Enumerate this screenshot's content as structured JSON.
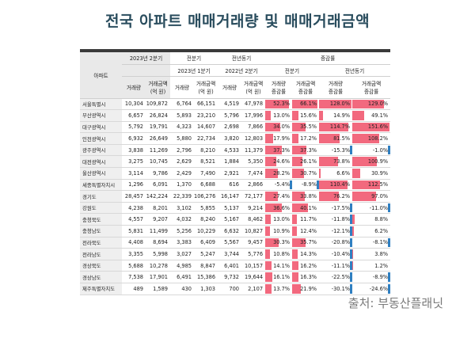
{
  "title": "전국 아파트 매매거래량 및 매매거래금액",
  "header": {
    "region": "아파트",
    "q2023": "2023년 2분기",
    "prev_q": "전분기",
    "prev_y": "전년동기",
    "change": "증감률",
    "q2023_1": "2023년 1분기",
    "q2022_2": "2022년 2분기",
    "change_prev_q": "전분기",
    "change_prev_y": "전년동기",
    "volume": "거래량",
    "amount": "거래금액\n(억 원)",
    "vol_change": "거래량\n증감률",
    "amt_change": "거래금액\n증감률"
  },
  "rows": [
    {
      "name": "서울특별시",
      "v23": "10,304",
      "a23": "109,872",
      "v1": "6,764",
      "a1": "66,151",
      "v22": "4,519",
      "a22": "47,978",
      "c1": "52.3%",
      "c2": "66.1%",
      "c3": "128.0%",
      "c4": "129.0%"
    },
    {
      "name": "부산광역시",
      "v23": "6,657",
      "a23": "26,824",
      "v1": "5,893",
      "a1": "23,210",
      "v22": "5,796",
      "a22": "17,996",
      "c1": "13.0%",
      "c2": "15.6%",
      "c3": "14.9%",
      "c4": "49.1%"
    },
    {
      "name": "대구광역시",
      "v23": "5,792",
      "a23": "19,791",
      "v1": "4,323",
      "a1": "14,607",
      "v22": "2,698",
      "a22": "7,866",
      "c1": "34.0%",
      "c2": "35.5%",
      "c3": "114.7%",
      "c4": "151.6%"
    },
    {
      "name": "인천광역시",
      "v23": "6,932",
      "a23": "26,649",
      "v1": "5,880",
      "a1": "22,734",
      "v22": "3,820",
      "a22": "12,803",
      "c1": "17.9%",
      "c2": "17.2%",
      "c3": "81.5%",
      "c4": "108.2%"
    },
    {
      "name": "광주광역시",
      "v23": "3,838",
      "a23": "11,269",
      "v1": "2,796",
      "a1": "8,210",
      "v22": "4,533",
      "a22": "11,379",
      "c1": "37.3%",
      "c2": "37.3%",
      "c3": "-15.3%",
      "c4": "-1.0%"
    },
    {
      "name": "대전광역시",
      "v23": "3,275",
      "a23": "10,745",
      "v1": "2,629",
      "a1": "8,521",
      "v22": "1,884",
      "a22": "5,350",
      "c1": "24.6%",
      "c2": "26.1%",
      "c3": "73.8%",
      "c4": "100.9%"
    },
    {
      "name": "울산광역시",
      "v23": "3,114",
      "a23": "9,786",
      "v1": "2,429",
      "a1": "7,490",
      "v22": "2,921",
      "a22": "7,474",
      "c1": "28.2%",
      "c2": "30.7%",
      "c3": "6.6%",
      "c4": "30.9%"
    },
    {
      "name": "세종특별자치시",
      "v23": "1,296",
      "a23": "6,091",
      "v1": "1,370",
      "a1": "6,688",
      "v22": "616",
      "a22": "2,866",
      "c1": "-5.4%",
      "c2": "-8.9%",
      "c3": "110.4%",
      "c4": "112.5%"
    },
    {
      "name": "경기도",
      "v23": "28,457",
      "a23": "142,224",
      "v1": "22,339",
      "a1": "106,276",
      "v22": "16,147",
      "a22": "72,177",
      "c1": "27.4%",
      "c2": "33.8%",
      "c3": "76.2%",
      "c4": "97.0%"
    },
    {
      "name": "강원도",
      "v23": "4,238",
      "a23": "8,201",
      "v1": "3,102",
      "a1": "5,855",
      "v22": "5,137",
      "a22": "9,214",
      "c1": "36.6%",
      "c2": "40.1%",
      "c3": "-17.5%",
      "c4": "-11.0%"
    },
    {
      "name": "충청북도",
      "v23": "4,557",
      "a23": "9,207",
      "v1": "4,032",
      "a1": "8,240",
      "v22": "5,167",
      "a22": "8,462",
      "c1": "13.0%",
      "c2": "11.7%",
      "c3": "-11.8%",
      "c4": "8.8%"
    },
    {
      "name": "충청남도",
      "v23": "5,831",
      "a23": "11,499",
      "v1": "5,256",
      "a1": "10,229",
      "v22": "6,632",
      "a22": "10,827",
      "c1": "10.9%",
      "c2": "12.4%",
      "c3": "-12.1%",
      "c4": "6.2%"
    },
    {
      "name": "전라북도",
      "v23": "4,408",
      "a23": "8,694",
      "v1": "3,383",
      "a1": "6,409",
      "v22": "5,567",
      "a22": "9,457",
      "c1": "30.3%",
      "c2": "35.7%",
      "c3": "-20.8%",
      "c4": "-8.1%"
    },
    {
      "name": "전라남도",
      "v23": "3,355",
      "a23": "5,998",
      "v1": "3,027",
      "a1": "5,247",
      "v22": "3,744",
      "a22": "5,776",
      "c1": "10.8%",
      "c2": "14.3%",
      "c3": "-10.4%",
      "c4": "3.8%"
    },
    {
      "name": "경상북도",
      "v23": "5,688",
      "a23": "10,278",
      "v1": "4,985",
      "a1": "8,847",
      "v22": "6,401",
      "a22": "10,157",
      "c1": "14.1%",
      "c2": "16.2%",
      "c3": "-11.1%",
      "c4": "1.2%"
    },
    {
      "name": "경상남도",
      "v23": "7,538",
      "a23": "17,901",
      "v1": "6,491",
      "a1": "15,386",
      "v22": "9,732",
      "a22": "19,644",
      "c1": "16.1%",
      "c2": "16.3%",
      "c3": "-22.5%",
      "c4": "-8.9%"
    },
    {
      "name": "제주특별자치도",
      "v23": "489",
      "a23": "1,589",
      "v1": "430",
      "a1": "1,303",
      "v22": "700",
      "a22": "2,107",
      "c1": "13.7%",
      "c2": "21.9%",
      "c3": "-30.1%",
      "c4": "-24.6%"
    }
  ],
  "source": "출처: 부동산플래닛",
  "colors": {
    "positive": "#f2697e",
    "negative": "#2f7fc1",
    "title": "#2a4d5e"
  }
}
